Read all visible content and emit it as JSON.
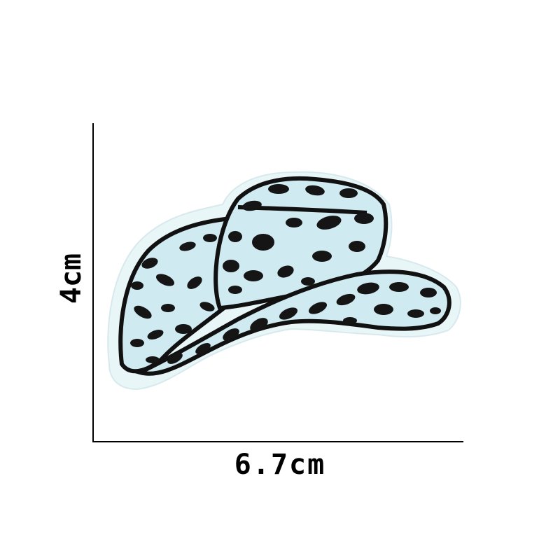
{
  "dimensions": {
    "height_label": "4cm",
    "width_label": "6.7cm"
  },
  "patch": {
    "subject": "cowboy-hat-patch",
    "colors": {
      "base": "#cfeaf0",
      "spots": "#151515",
      "outline": "#111111",
      "edge": "#e9f6f8"
    }
  }
}
